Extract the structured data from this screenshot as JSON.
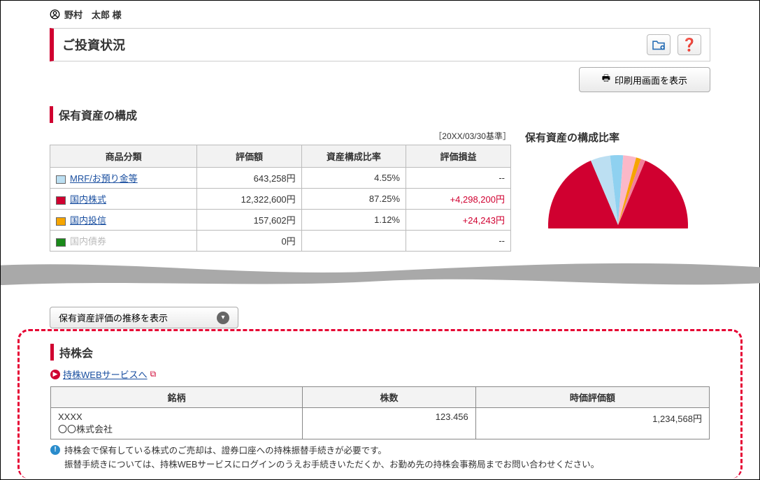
{
  "user": {
    "name": "野村　太郎 様"
  },
  "title": "ご投資状況",
  "print_label": "印刷用画面を表示",
  "section_assets": "保有資産の構成",
  "as_of": "［20XX/03/30基準］",
  "chart_title": "保有資産の構成比率",
  "asset_table": {
    "headers": [
      "商品分類",
      "評価額",
      "資産構成比率",
      "評価損益"
    ],
    "rows": [
      {
        "swatch": "#bcdff2",
        "label": "MRF/お預り金等",
        "link": true,
        "val": "643,258円",
        "ratio": "4.55%",
        "pl": "--",
        "pl_pos": false
      },
      {
        "swatch": "#d00030",
        "label": "国内株式",
        "link": true,
        "val": "12,322,600円",
        "ratio": "87.25%",
        "pl": "+4,298,200円",
        "pl_pos": true
      },
      {
        "swatch": "#f6a500",
        "label": "国内投信",
        "link": true,
        "val": "157,602円",
        "ratio": "1.12%",
        "pl": "+24,243円",
        "pl_pos": true
      },
      {
        "swatch": "#1a8a1a",
        "label": "国内債券",
        "link": false,
        "val": "0円",
        "ratio": "",
        "pl": "--",
        "pl_pos": false
      }
    ]
  },
  "pie": {
    "slices": [
      {
        "color": "#d00030",
        "pct": 87.25
      },
      {
        "color": "#bcdff2",
        "pct": 4.55
      },
      {
        "color": "#8fd1f0",
        "pct": 3.0
      },
      {
        "color": "#fbb8c8",
        "pct": 3.0
      },
      {
        "color": "#f6a500",
        "pct": 1.12
      },
      {
        "color": "#f27f9a",
        "pct": 1.08
      }
    ]
  },
  "history_btn": "保有資産評価の推移を表示",
  "mochikabu": {
    "heading": "持株会",
    "link_label": "持株WEBサービスへ",
    "headers": [
      "銘柄",
      "株数",
      "時価評価額"
    ],
    "row": {
      "code": "XXXX",
      "name": "〇〇株式会社",
      "qty": "123.456",
      "val": "1,234,568円"
    },
    "note1": "持株会で保有している株式のご売却は、證券口座への持株振替手続きが必要です。",
    "note2": "振替手続きについては、持株WEBサービスにログインのうえお手続きいただくか、お勤め先の持株会事務局までお問い合わせください。"
  }
}
